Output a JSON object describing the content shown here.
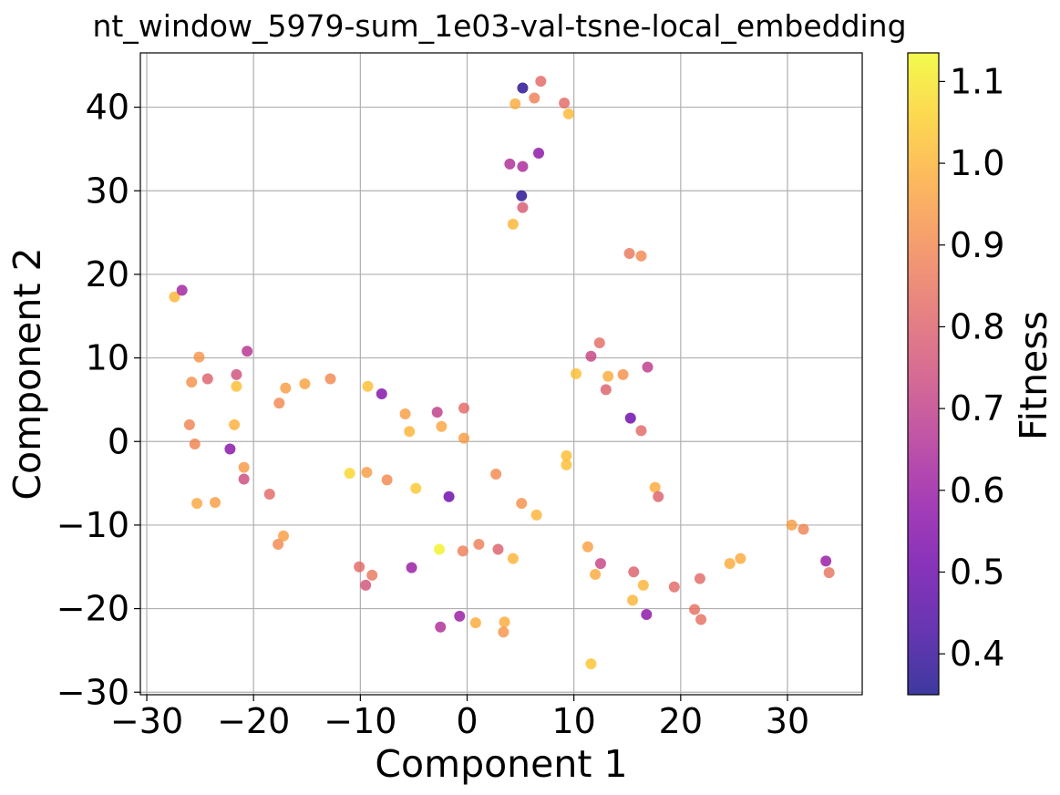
{
  "chart_data": {
    "type": "scatter",
    "title": "nt_window_5979-sum_1e03-val-tsne-local_embedding",
    "xlabel": "Component 1",
    "ylabel": "Component 2",
    "colorbar_label": "Fitness",
    "xlim": [
      -30.6,
      37.0
    ],
    "ylim": [
      -30.3,
      46.5
    ],
    "xticks": [
      -30,
      -20,
      -10,
      0,
      10,
      20,
      30
    ],
    "yticks": [
      -30,
      -20,
      -10,
      0,
      10,
      20,
      30,
      40
    ],
    "xtick_labels": [
      "−30",
      "−20",
      "−10",
      "0",
      "10",
      "20",
      "30"
    ],
    "ytick_labels": [
      "−30",
      "−20",
      "−10",
      "0",
      "10",
      "20",
      "30",
      "40"
    ],
    "grid": true,
    "colormap": "plasma",
    "color_range": [
      0.35,
      1.135
    ],
    "colorbar_ticks": [
      0.4,
      0.5,
      0.6,
      0.7,
      0.8,
      0.9,
      1.0,
      1.1
    ],
    "colorbar_tick_labels": [
      "0.4",
      "0.5",
      "0.6",
      "0.7",
      "0.8",
      "0.9",
      "1.0",
      "1.1"
    ],
    "points": [
      {
        "x": 5.2,
        "y": 42.3,
        "fitness": 0.38
      },
      {
        "x": 6.9,
        "y": 43.1,
        "fitness": 0.82
      },
      {
        "x": 6.3,
        "y": 41.1,
        "fitness": 0.88
      },
      {
        "x": 4.5,
        "y": 40.4,
        "fitness": 0.98
      },
      {
        "x": 9.1,
        "y": 40.5,
        "fitness": 0.82
      },
      {
        "x": 9.5,
        "y": 39.2,
        "fitness": 1.01
      },
      {
        "x": 4.0,
        "y": 33.2,
        "fitness": 0.65
      },
      {
        "x": 5.2,
        "y": 32.9,
        "fitness": 0.64
      },
      {
        "x": 6.7,
        "y": 34.5,
        "fitness": 0.57
      },
      {
        "x": 5.1,
        "y": 29.4,
        "fitness": 0.38
      },
      {
        "x": 5.2,
        "y": 28.0,
        "fitness": 0.78
      },
      {
        "x": 4.3,
        "y": 26.0,
        "fitness": 1.0
      },
      {
        "x": 15.2,
        "y": 22.5,
        "fitness": 0.86
      },
      {
        "x": 16.3,
        "y": 22.2,
        "fitness": 0.9
      },
      {
        "x": -27.4,
        "y": 17.3,
        "fitness": 1.0
      },
      {
        "x": -26.7,
        "y": 18.1,
        "fitness": 0.62
      },
      {
        "x": -25.1,
        "y": 10.1,
        "fitness": 0.93
      },
      {
        "x": -20.6,
        "y": 10.8,
        "fitness": 0.67
      },
      {
        "x": -25.8,
        "y": 7.1,
        "fitness": 0.92
      },
      {
        "x": -24.3,
        "y": 7.5,
        "fitness": 0.8
      },
      {
        "x": -21.6,
        "y": 8.0,
        "fitness": 0.75
      },
      {
        "x": -21.6,
        "y": 6.6,
        "fitness": 1.02
      },
      {
        "x": -26.0,
        "y": 2.0,
        "fitness": 0.89
      },
      {
        "x": -21.8,
        "y": 2.0,
        "fitness": 0.99
      },
      {
        "x": -25.5,
        "y": -0.3,
        "fitness": 0.89
      },
      {
        "x": -22.2,
        "y": -0.9,
        "fitness": 0.56
      },
      {
        "x": -20.9,
        "y": -3.1,
        "fitness": 0.94
      },
      {
        "x": -20.9,
        "y": -4.5,
        "fitness": 0.74
      },
      {
        "x": -25.3,
        "y": -7.4,
        "fitness": 0.97
      },
      {
        "x": -23.6,
        "y": -7.3,
        "fitness": 0.95
      },
      {
        "x": -18.5,
        "y": -6.3,
        "fitness": 0.82
      },
      {
        "x": -17.7,
        "y": -12.3,
        "fitness": 0.9
      },
      {
        "x": -17.2,
        "y": -11.3,
        "fitness": 0.95
      },
      {
        "x": -17.6,
        "y": 4.6,
        "fitness": 0.9
      },
      {
        "x": -17.0,
        "y": 6.4,
        "fitness": 0.95
      },
      {
        "x": -15.2,
        "y": 6.9,
        "fitness": 0.96
      },
      {
        "x": -12.8,
        "y": 7.5,
        "fitness": 0.9
      },
      {
        "x": -9.3,
        "y": 6.6,
        "fitness": 1.02
      },
      {
        "x": -8.0,
        "y": 5.7,
        "fitness": 0.55
      },
      {
        "x": -11.0,
        "y": -3.8,
        "fitness": 1.07
      },
      {
        "x": -9.4,
        "y": -3.7,
        "fitness": 0.95
      },
      {
        "x": -7.5,
        "y": -4.6,
        "fitness": 0.9
      },
      {
        "x": -5.8,
        "y": 3.3,
        "fitness": 0.95
      },
      {
        "x": -5.4,
        "y": 1.2,
        "fitness": 1.0
      },
      {
        "x": -4.8,
        "y": -5.6,
        "fitness": 1.04
      },
      {
        "x": -2.8,
        "y": 3.5,
        "fitness": 0.7
      },
      {
        "x": -2.4,
        "y": 1.8,
        "fitness": 0.97
      },
      {
        "x": -1.7,
        "y": -6.6,
        "fitness": 0.5
      },
      {
        "x": -0.3,
        "y": 4.0,
        "fitness": 0.82
      },
      {
        "x": -0.3,
        "y": 0.4,
        "fitness": 0.95
      },
      {
        "x": 2.7,
        "y": -3.9,
        "fitness": 0.9
      },
      {
        "x": 5.1,
        "y": -7.4,
        "fitness": 0.92
      },
      {
        "x": 6.5,
        "y": -8.8,
        "fitness": 1.0
      },
      {
        "x": -2.6,
        "y": -12.9,
        "fitness": 1.12
      },
      {
        "x": -0.4,
        "y": -13.1,
        "fitness": 0.88
      },
      {
        "x": 1.1,
        "y": -12.3,
        "fitness": 0.88
      },
      {
        "x": 2.9,
        "y": -12.9,
        "fitness": 0.8
      },
      {
        "x": 4.3,
        "y": -14.0,
        "fitness": 1.0
      },
      {
        "x": -10.1,
        "y": -15.0,
        "fitness": 0.82
      },
      {
        "x": -8.9,
        "y": -16.0,
        "fitness": 0.86
      },
      {
        "x": -9.5,
        "y": -17.2,
        "fitness": 0.76
      },
      {
        "x": -5.2,
        "y": -15.1,
        "fitness": 0.6
      },
      {
        "x": -2.5,
        "y": -22.2,
        "fitness": 0.65
      },
      {
        "x": -0.7,
        "y": -20.9,
        "fitness": 0.6
      },
      {
        "x": 0.8,
        "y": -21.7,
        "fitness": 0.98
      },
      {
        "x": 3.5,
        "y": -21.6,
        "fitness": 0.98
      },
      {
        "x": 3.4,
        "y": -22.8,
        "fitness": 0.93
      },
      {
        "x": 9.3,
        "y": -1.7,
        "fitness": 1.02
      },
      {
        "x": 9.3,
        "y": -2.8,
        "fitness": 1.02
      },
      {
        "x": 10.2,
        "y": 8.1,
        "fitness": 1.02
      },
      {
        "x": 11.6,
        "y": 10.2,
        "fitness": 0.72
      },
      {
        "x": 12.4,
        "y": 11.8,
        "fitness": 0.83
      },
      {
        "x": 13.2,
        "y": 7.8,
        "fitness": 0.98
      },
      {
        "x": 13.0,
        "y": 6.2,
        "fitness": 0.8
      },
      {
        "x": 14.6,
        "y": 8.0,
        "fitness": 0.92
      },
      {
        "x": 16.9,
        "y": 8.9,
        "fitness": 0.69
      },
      {
        "x": 15.3,
        "y": 2.8,
        "fitness": 0.5
      },
      {
        "x": 16.3,
        "y": 1.3,
        "fitness": 0.82
      },
      {
        "x": 17.6,
        "y": -5.5,
        "fitness": 0.98
      },
      {
        "x": 17.9,
        "y": -6.6,
        "fitness": 0.8
      },
      {
        "x": 11.3,
        "y": -12.6,
        "fitness": 0.96
      },
      {
        "x": 12.5,
        "y": -14.6,
        "fitness": 0.72
      },
      {
        "x": 12.0,
        "y": -15.9,
        "fitness": 0.98
      },
      {
        "x": 15.6,
        "y": -15.6,
        "fitness": 0.8
      },
      {
        "x": 16.5,
        "y": -17.2,
        "fitness": 1.0
      },
      {
        "x": 15.5,
        "y": -19.0,
        "fitness": 1.0
      },
      {
        "x": 16.8,
        "y": -20.7,
        "fitness": 0.57
      },
      {
        "x": 11.6,
        "y": -26.6,
        "fitness": 1.03
      },
      {
        "x": 19.4,
        "y": -17.4,
        "fitness": 0.82
      },
      {
        "x": 21.8,
        "y": -16.4,
        "fitness": 0.82
      },
      {
        "x": 21.3,
        "y": -20.1,
        "fitness": 0.84
      },
      {
        "x": 21.9,
        "y": -21.3,
        "fitness": 0.84
      },
      {
        "x": 24.6,
        "y": -14.6,
        "fitness": 0.98
      },
      {
        "x": 25.6,
        "y": -14.0,
        "fitness": 0.98
      },
      {
        "x": 30.4,
        "y": -10.0,
        "fitness": 0.95
      },
      {
        "x": 31.5,
        "y": -10.5,
        "fitness": 0.89
      },
      {
        "x": 33.6,
        "y": -14.3,
        "fitness": 0.6
      },
      {
        "x": 33.9,
        "y": -15.7,
        "fitness": 0.85
      }
    ]
  }
}
